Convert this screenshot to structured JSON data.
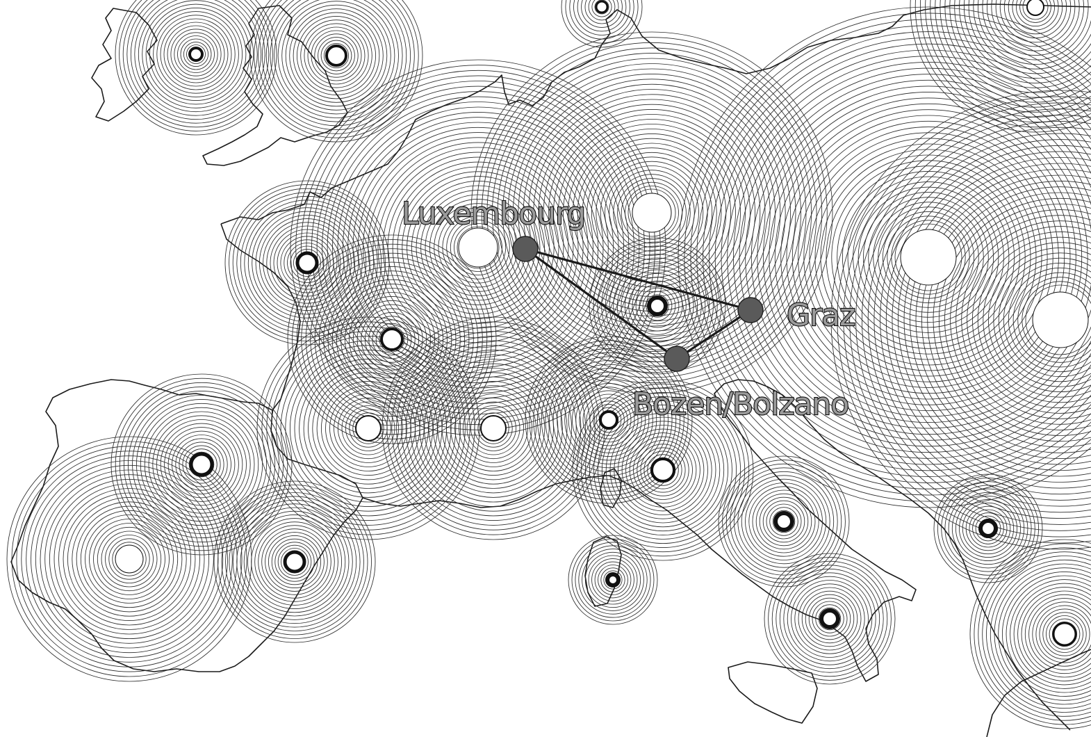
{
  "map": {
    "highlighted_cities": [
      {
        "name": "Luxembourg"
      },
      {
        "name": "Graz"
      },
      {
        "name": "Bozen/Bolzano"
      }
    ],
    "connections": [
      [
        "Luxembourg",
        "Graz"
      ],
      [
        "Luxembourg",
        "Bozen/Bolzano"
      ],
      [
        "Graz",
        "Bozen/Bolzano"
      ]
    ],
    "colors": {
      "background": "#ffffff",
      "lines": "#1a1a1a",
      "markers": "#5a5a5a",
      "label_fill": "#9a9a9a"
    }
  }
}
